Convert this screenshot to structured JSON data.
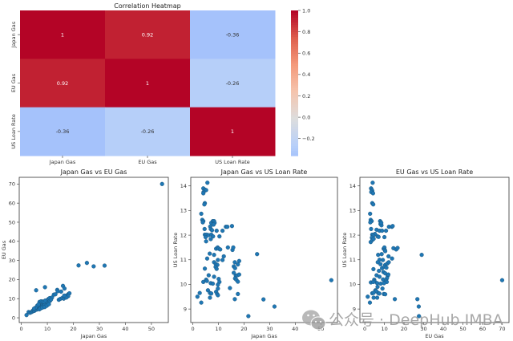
{
  "chart_data": [
    {
      "type": "heatmap",
      "title": "Correlation Heatmap",
      "row_labels": [
        "Japan Gas",
        "EU Gas",
        "US Loan Rate"
      ],
      "col_labels": [
        "Japan Gas",
        "EU Gas",
        "US Loan Rate"
      ],
      "values": [
        [
          1,
          0.92,
          -0.36
        ],
        [
          0.92,
          1,
          -0.26
        ],
        [
          -0.36,
          -0.26,
          1
        ]
      ],
      "cell_text": [
        [
          "1",
          "0.92",
          "-0.36"
        ],
        [
          "0.92",
          "1",
          "-0.26"
        ],
        [
          "-0.36",
          "-0.26",
          "1"
        ]
      ],
      "colormap": "coolwarm",
      "colorbar": {
        "range": [
          -0.36,
          1.0
        ],
        "ticks": [
          -0.2,
          0.0,
          0.2,
          0.4,
          0.6,
          0.8,
          1.0
        ],
        "tick_labels": [
          "−0.2",
          "0.0",
          "0.2",
          "0.4",
          "0.6",
          "0.8",
          "1.0"
        ]
      }
    },
    {
      "type": "scatter",
      "title": "Japan Gas vs EU Gas",
      "xlabel": "Japan Gas",
      "ylabel": "EU Gas",
      "xlim": [
        -0.8,
        56.5
      ],
      "ylim": [
        -2.5,
        73.5
      ],
      "xticks": [
        0,
        10,
        20,
        30,
        40,
        50
      ],
      "yticks": [
        0,
        10,
        20,
        30,
        40,
        50,
        60,
        70
      ],
      "color": "#1f77b4",
      "points": [
        [
          2.0,
          1.4
        ],
        [
          2.8,
          3.0
        ],
        [
          3.3,
          2.6
        ],
        [
          3.8,
          2.9
        ],
        [
          4.2,
          3.2
        ],
        [
          4.4,
          3.7
        ],
        [
          4.7,
          4.0
        ],
        [
          5.0,
          3.6
        ],
        [
          5.2,
          4.3
        ],
        [
          5.5,
          4.6
        ],
        [
          5.8,
          4.2
        ],
        [
          6.0,
          4.9
        ],
        [
          6.3,
          5.2
        ],
        [
          6.5,
          4.7
        ],
        [
          6.7,
          5.6
        ],
        [
          7.0,
          5.3
        ],
        [
          7.2,
          6.0
        ],
        [
          7.5,
          5.6
        ],
        [
          7.7,
          6.4
        ],
        [
          8.0,
          6.1
        ],
        [
          8.2,
          6.8
        ],
        [
          8.5,
          6.5
        ],
        [
          8.7,
          7.3
        ],
        [
          9.0,
          7.0
        ],
        [
          9.3,
          7.6
        ],
        [
          9.6,
          8.2
        ],
        [
          9.9,
          8.9
        ],
        [
          10.2,
          9.5
        ],
        [
          10.5,
          9.9
        ],
        [
          10.9,
          10.3
        ],
        [
          7.0,
          8.3
        ],
        [
          7.6,
          8.6
        ],
        [
          8.2,
          8.5
        ],
        [
          8.7,
          8.4
        ],
        [
          9.2,
          9.0
        ],
        [
          6.1,
          6.3
        ],
        [
          6.6,
          7.0
        ],
        [
          5.4,
          5.2
        ],
        [
          4.9,
          4.8
        ],
        [
          6.9,
          4.4
        ],
        [
          7.4,
          4.9
        ],
        [
          8.1,
          5.3
        ],
        [
          9.0,
          5.6
        ],
        [
          9.8,
          6.3
        ],
        [
          10.6,
          7.1
        ],
        [
          11.0,
          8.8
        ],
        [
          11.8,
          10.6
        ],
        [
          12.5,
          12.1
        ],
        [
          13.1,
          12.3
        ],
        [
          11.4,
          9.5
        ],
        [
          5.7,
          14.4
        ],
        [
          9.1,
          16.0
        ],
        [
          13.8,
          14.6
        ],
        [
          14.0,
          13.9
        ],
        [
          15.3,
          13.7
        ],
        [
          16.0,
          16.7
        ],
        [
          16.6,
          15.3
        ],
        [
          14.4,
          9.4
        ],
        [
          15.0,
          9.9
        ],
        [
          15.8,
          10.4
        ],
        [
          16.3,
          10.0
        ],
        [
          16.8,
          11.0
        ],
        [
          17.1,
          11.5
        ],
        [
          17.5,
          11.0
        ],
        [
          17.8,
          12.0
        ],
        [
          18.2,
          12.5
        ],
        [
          18.5,
          12.8
        ],
        [
          18.0,
          11.3
        ],
        [
          17.3,
          10.6
        ],
        [
          16.5,
          11.6
        ],
        [
          22.0,
          27.4
        ],
        [
          25.2,
          28.7
        ],
        [
          27.8,
          26.9
        ],
        [
          32.0,
          27.3
        ],
        [
          54.1,
          70.0
        ]
      ]
    },
    {
      "type": "scatter",
      "title": "Japan Gas vs US Loan Rate",
      "xlabel": "Japan Gas",
      "ylabel": "US Loan Rate",
      "xlim": [
        -0.8,
        56.5
      ],
      "ylim": [
        8.45,
        14.35
      ],
      "xticks": [
        0,
        10,
        20,
        30,
        40,
        50
      ],
      "yticks": [
        9,
        10,
        11,
        12,
        13,
        14
      ],
      "color": "#1f77b4",
      "points": [
        [
          5.7,
          14.13
        ],
        [
          4.1,
          13.9
        ],
        [
          4.7,
          13.85
        ],
        [
          5.2,
          13.83
        ],
        [
          4.2,
          13.75
        ],
        [
          4.1,
          13.7
        ],
        [
          4.7,
          13.3
        ],
        [
          4.5,
          13.25
        ],
        [
          3.3,
          12.87
        ],
        [
          3.7,
          12.62
        ],
        [
          4.1,
          12.57
        ],
        [
          3.9,
          12.52
        ],
        [
          7.2,
          12.5
        ],
        [
          7.8,
          12.57
        ],
        [
          8.3,
          12.57
        ],
        [
          8.5,
          12.5
        ],
        [
          8.1,
          12.43
        ],
        [
          6.8,
          12.35
        ],
        [
          7.0,
          12.25
        ],
        [
          7.5,
          12.2
        ],
        [
          9.3,
          12.18
        ],
        [
          11.6,
          12.18
        ],
        [
          12.9,
          12.34
        ],
        [
          13.5,
          12.34
        ],
        [
          15.3,
          12.37
        ],
        [
          4.6,
          12.25
        ],
        [
          4.7,
          12.02
        ],
        [
          5.4,
          12.02
        ],
        [
          6.2,
          12.0
        ],
        [
          7.2,
          12.02
        ],
        [
          5.0,
          11.92
        ],
        [
          5.2,
          11.75
        ],
        [
          7.0,
          11.84
        ],
        [
          7.9,
          11.95
        ],
        [
          10.4,
          11.95
        ],
        [
          9.1,
          11.45
        ],
        [
          9.7,
          11.5
        ],
        [
          10.1,
          11.45
        ],
        [
          10.7,
          11.42
        ],
        [
          13.7,
          11.5
        ],
        [
          15.5,
          11.4
        ],
        [
          15.8,
          11.5
        ],
        [
          6.6,
          11.25
        ],
        [
          8.3,
          11.2
        ],
        [
          12.1,
          11.14
        ],
        [
          11.6,
          10.99
        ],
        [
          9.8,
          10.99
        ],
        [
          5.6,
          11.05
        ],
        [
          8.3,
          10.9
        ],
        [
          9.0,
          10.82
        ],
        [
          9.6,
          10.79
        ],
        [
          8.9,
          10.71
        ],
        [
          9.3,
          10.63
        ],
        [
          4.7,
          10.64
        ],
        [
          16.4,
          10.9
        ],
        [
          18.1,
          10.95
        ],
        [
          17.6,
          10.81
        ],
        [
          16.0,
          10.73
        ],
        [
          16.5,
          10.66
        ],
        [
          16.0,
          10.47
        ],
        [
          16.8,
          10.35
        ],
        [
          17.4,
          10.37
        ],
        [
          18.1,
          10.4
        ],
        [
          16.5,
          10.24
        ],
        [
          17.0,
          10.19
        ],
        [
          17.6,
          10.11
        ],
        [
          6.2,
          10.37
        ],
        [
          8.3,
          10.31
        ],
        [
          5.2,
          10.19
        ],
        [
          5.5,
          10.14
        ],
        [
          4.1,
          10.1
        ],
        [
          7.0,
          10.05
        ],
        [
          7.8,
          10.03
        ],
        [
          10.1,
          10.22
        ],
        [
          10.4,
          10.1
        ],
        [
          9.8,
          9.99
        ],
        [
          5.9,
          9.76
        ],
        [
          6.7,
          9.65
        ],
        [
          7.2,
          9.63
        ],
        [
          9.1,
          9.7
        ],
        [
          9.5,
          9.61
        ],
        [
          9.8,
          9.56
        ],
        [
          9.8,
          9.83
        ],
        [
          14.5,
          9.85
        ],
        [
          17.6,
          9.61
        ],
        [
          2.7,
          9.65
        ],
        [
          1.8,
          9.5
        ],
        [
          3.3,
          9.26
        ],
        [
          6.7,
          9.46
        ],
        [
          16.4,
          9.4
        ],
        [
          21.7,
          8.71
        ],
        [
          25.1,
          11.23
        ],
        [
          27.6,
          9.39
        ],
        [
          31.9,
          9.1
        ],
        [
          54.1,
          10.17
        ]
      ]
    },
    {
      "type": "scatter",
      "title": "EU Gas vs US Loan Rate",
      "xlabel": "EU Gas",
      "ylabel": "US Loan Rate",
      "xlim": [
        -2.5,
        73.5
      ],
      "ylim": [
        8.45,
        14.35
      ],
      "xticks": [
        0,
        10,
        20,
        30,
        40,
        50,
        60,
        70
      ],
      "yticks": [
        9,
        10,
        11,
        12,
        13,
        14
      ],
      "color": "#1f77b4",
      "points": [
        [
          4.0,
          14.13
        ],
        [
          3.2,
          13.9
        ],
        [
          3.5,
          13.85
        ],
        [
          3.8,
          13.8
        ],
        [
          3.3,
          13.75
        ],
        [
          4.2,
          13.7
        ],
        [
          3.8,
          13.3
        ],
        [
          4.3,
          13.25
        ],
        [
          2.7,
          12.87
        ],
        [
          3.0,
          12.62
        ],
        [
          3.5,
          12.57
        ],
        [
          2.8,
          12.52
        ],
        [
          7.8,
          12.57
        ],
        [
          8.2,
          12.52
        ],
        [
          8.0,
          12.45
        ],
        [
          8.5,
          12.4
        ],
        [
          8.4,
          12.5
        ],
        [
          3.2,
          12.25
        ],
        [
          6.0,
          12.22
        ],
        [
          7.5,
          12.18
        ],
        [
          8.8,
          12.18
        ],
        [
          10.8,
          12.18
        ],
        [
          12.3,
          12.34
        ],
        [
          13.8,
          12.34
        ],
        [
          14.2,
          12.37
        ],
        [
          3.8,
          12.02
        ],
        [
          5.2,
          12.05
        ],
        [
          4.3,
          11.98
        ],
        [
          6.5,
          11.95
        ],
        [
          3.6,
          11.9
        ],
        [
          3.0,
          11.72
        ],
        [
          3.8,
          11.8
        ],
        [
          4.5,
          11.85
        ],
        [
          7.0,
          11.93
        ],
        [
          10.0,
          11.92
        ],
        [
          9.6,
          11.45
        ],
        [
          10.0,
          11.5
        ],
        [
          10.2,
          11.4
        ],
        [
          14.6,
          11.47
        ],
        [
          16.0,
          11.42
        ],
        [
          16.7,
          11.48
        ],
        [
          10.4,
          11.35
        ],
        [
          6.8,
          11.2
        ],
        [
          8.6,
          11.23
        ],
        [
          12.1,
          11.14
        ],
        [
          13.9,
          11.05
        ],
        [
          9.2,
          10.99
        ],
        [
          7.5,
          11.0
        ],
        [
          6.6,
          10.9
        ],
        [
          8.0,
          10.82
        ],
        [
          10.4,
          10.79
        ],
        [
          11.5,
          10.85
        ],
        [
          12.2,
          10.9
        ],
        [
          4.4,
          10.62
        ],
        [
          7.2,
          10.55
        ],
        [
          8.8,
          10.66
        ],
        [
          10.1,
          10.72
        ],
        [
          11.0,
          10.68
        ],
        [
          9.5,
          10.5
        ],
        [
          11.7,
          10.35
        ],
        [
          12.0,
          10.4
        ],
        [
          10.4,
          10.45
        ],
        [
          11.3,
          10.25
        ],
        [
          9.3,
          10.2
        ],
        [
          10.8,
          10.15
        ],
        [
          11.2,
          10.1
        ],
        [
          6.0,
          10.37
        ],
        [
          7.5,
          10.31
        ],
        [
          4.8,
          10.19
        ],
        [
          5.0,
          10.12
        ],
        [
          3.1,
          10.08
        ],
        [
          6.3,
          10.05
        ],
        [
          8.1,
          10.03
        ],
        [
          9.8,
          10.05
        ],
        [
          4.4,
          10.1
        ],
        [
          6.5,
          9.9
        ],
        [
          5.4,
          9.76
        ],
        [
          6.8,
          9.65
        ],
        [
          7.4,
          9.63
        ],
        [
          9.0,
          9.83
        ],
        [
          9.7,
          9.61
        ],
        [
          10.4,
          9.6
        ],
        [
          5.8,
          9.73
        ],
        [
          3.8,
          9.64
        ],
        [
          4.5,
          9.66
        ],
        [
          1.5,
          9.5
        ],
        [
          2.6,
          9.26
        ],
        [
          6.3,
          9.46
        ],
        [
          4.5,
          9.46
        ],
        [
          15.3,
          9.4
        ],
        [
          27.6,
          8.71
        ],
        [
          29.0,
          11.2
        ],
        [
          26.8,
          9.4
        ],
        [
          27.5,
          9.1
        ],
        [
          70.0,
          10.17
        ]
      ]
    }
  ],
  "watermark": {
    "text": "公众号 · DeepHub IMBA",
    "icon": "wechat-icon"
  }
}
